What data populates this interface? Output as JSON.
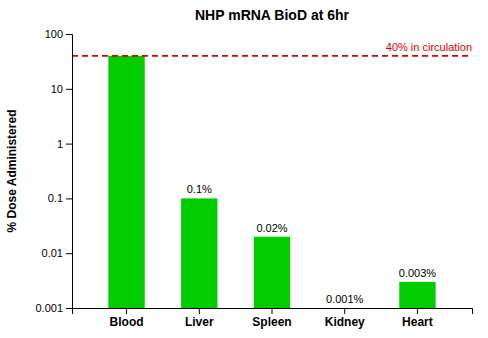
{
  "chart_data": {
    "type": "bar",
    "title": "NHP mRNA BioD at 6hr",
    "y_label": "% Dose Administered",
    "categories": [
      "Blood",
      "Liver",
      "Spleen",
      "Kidney",
      "Heart"
    ],
    "values": [
      40,
      0.1,
      0.02,
      0.001,
      0.003
    ],
    "value_labels": [
      null,
      "0.1%",
      "0.02%",
      "0.001%",
      "0.003%"
    ],
    "data_labels": true,
    "color": "#00CC00",
    "log": "y",
    "ylim": [
      0.001,
      100
    ],
    "yticks": [
      0.001,
      0.01,
      0.1,
      1,
      10,
      100
    ],
    "grid": false,
    "annotations": [
      {
        "type": "hline",
        "y": 40,
        "label": "40% in circulation",
        "color": "#DD0000",
        "line_style": "dashed"
      }
    ]
  }
}
